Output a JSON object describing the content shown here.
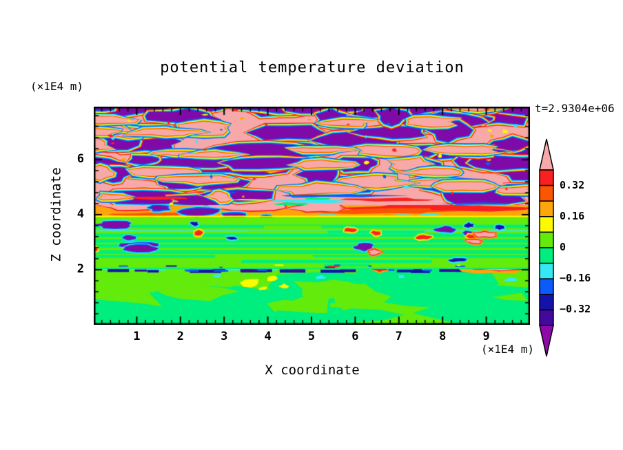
{
  "title": "potential temperature deviation",
  "time_label": "t=2.9304e+06",
  "axes": {
    "x": {
      "label": "X coordinate",
      "unit": "(×1E4 m)",
      "ticks": [
        1,
        2,
        3,
        4,
        5,
        6,
        7,
        8,
        9
      ],
      "range": [
        0,
        10
      ],
      "minor_tick_step": 0.2
    },
    "z": {
      "label": "Z coordinate",
      "unit": "(×1E4 m)",
      "ticks": [
        2,
        4,
        6
      ],
      "range": [
        0,
        7.9
      ],
      "minor_tick_step": 0.4
    }
  },
  "colorbar": {
    "tick_labels": [
      "0.32",
      "0.16",
      "0",
      "−0.16",
      "−0.32"
    ],
    "levels_top_to_bottom": [
      0.4,
      0.32,
      0.24,
      0.16,
      0.08,
      0,
      -0.08,
      -0.16,
      -0.24,
      -0.32,
      -0.4
    ],
    "segment_colors_top_to_bottom": [
      "#FB2020",
      "#FA5500",
      "#FDA50A",
      "#FCFA00",
      "#63EB0C",
      "#00EE7E",
      "#34E9F4",
      "#0A5BFA",
      "#1512AA",
      "#43089C"
    ],
    "over_arrow_color": "#F7A9A9",
    "under_arrow_color": "#8E09A8"
  },
  "palette": {
    "pink": "#F7A9A9",
    "red": "#FB2020",
    "orangered": "#FA5500",
    "orange": "#FDA50A",
    "yellow": "#FCFA00",
    "chartreuse": "#63EB0C",
    "spring": "#00EE7E",
    "cyan": "#34E9F4",
    "blue": "#0A5BFA",
    "navy": "#1512AA",
    "indigo": "#43089C",
    "purple": "#7F0AA8"
  },
  "chart_data": {
    "type": "heatmap",
    "title": "potential temperature deviation",
    "xlabel": "X coordinate",
    "ylabel": "Z coordinate",
    "x_unit": "(×1E4 m)",
    "y_unit": "(×1E4 m)",
    "xlim": [
      0,
      10
    ],
    "ylim": [
      0,
      7.9
    ],
    "x_ticks": [
      1,
      2,
      3,
      4,
      5,
      6,
      7,
      8,
      9
    ],
    "y_ticks": [
      2,
      4,
      6
    ],
    "time": "t=2.9304e+06",
    "contour_interval": 0.08,
    "levels": [
      -0.4,
      -0.32,
      -0.24,
      -0.16,
      -0.08,
      0,
      0.08,
      0.16,
      0.24,
      0.32,
      0.4
    ],
    "colorbar_tick_labels": [
      "0.32",
      "0.16",
      "0",
      "−0.16",
      "−0.32"
    ],
    "legend_position": "right",
    "grid": false,
    "regions": [
      {
        "z_range": [
          4.5,
          7.9
        ],
        "value_range": [
          -0.45,
          0.45
        ],
        "description": "turbulent breaking-wave layer: interleaved elongated patches above +0.4 (pink) and below −0.4 (purple) separated by thin rainbow contour fringes"
      },
      {
        "z_range": [
          3.9,
          4.5
        ],
        "value_range": [
          0.16,
          0.45
        ],
        "description": "strong warm band of red/orange; brightest streak spans x≈6–9.7 at z≈4.1 with pink patches and a few purple pockets on the left"
      },
      {
        "z_range": [
          2.1,
          3.9
        ],
        "value_range": [
          -0.12,
          0.12
        ],
        "description": "finely layered horizontal green stripes (chartreuse/spring green) with thin cyan and yellow lines and scattered small purple, navy and red anomalies"
      },
      {
        "z_range": [
          1.95,
          2.1
        ],
        "value_range": [
          -0.35,
          0.45
        ],
        "description": "thin inversion line: dashed navy/blue segments with cyan fringe; warm pink/red blob at x≈8.7–9.8 and small orange spot near x≈6.5"
      },
      {
        "z_range": [
          0,
          1.95
        ],
        "value_range": [
          -0.08,
          0.16
        ],
        "description": "smooth boundary layer: broad chartreuse and spring-green swirls, small yellow spots near x≈3.5–4.4 at z≈1.4–1.7, few tiny cyan spots just below z=2"
      }
    ]
  }
}
